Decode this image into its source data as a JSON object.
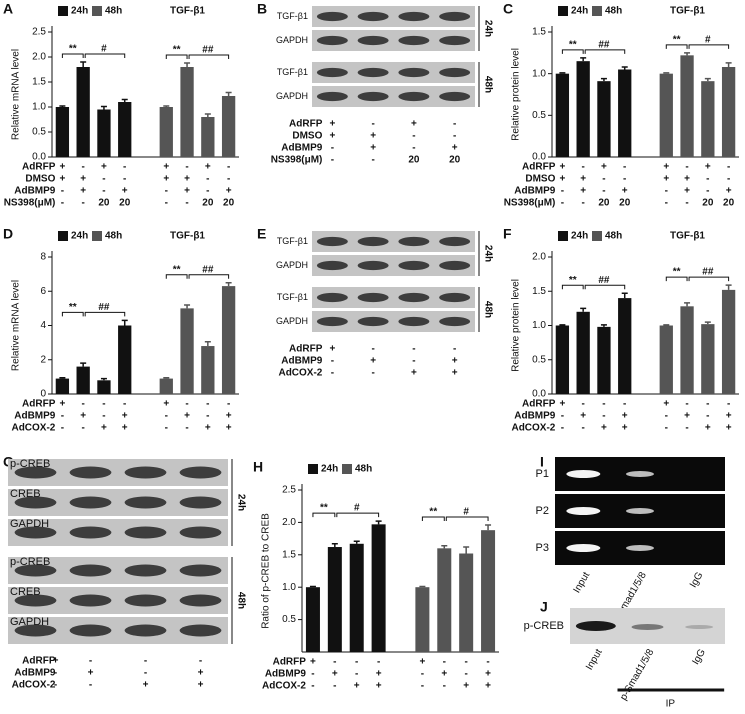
{
  "chart_data": [
    {
      "panel": "A",
      "type": "bar",
      "title": "TGF-β1",
      "ylabel": "Relative mRNA level",
      "ylim": [
        0,
        2.5
      ],
      "yticks": [
        {
          "value": 0,
          "label": "0.0"
        },
        0.5,
        {
          "value": 1,
          "label": "1.0"
        },
        1.5,
        {
          "value": 2,
          "label": "2.0"
        },
        2.5
      ],
      "series": [
        {
          "name": "24h",
          "color": "#111111",
          "values": [
            1.0,
            1.8,
            0.95,
            1.1
          ],
          "errors": [
            0.02,
            0.1,
            0.06,
            0.05
          ],
          "sig": [
            "**",
            "#"
          ]
        },
        {
          "name": "48h",
          "color": "#555555",
          "values": [
            1.0,
            1.8,
            0.8,
            1.22
          ],
          "errors": [
            0.02,
            0.08,
            0.06,
            0.07
          ],
          "sig": [
            "**",
            "##"
          ]
        }
      ],
      "conditions": [
        {
          "name": "AdRFP",
          "signs": [
            "+",
            "-",
            "+",
            "-"
          ]
        },
        {
          "name": "DMSO",
          "signs": [
            "+",
            "+",
            "-",
            "-"
          ]
        },
        {
          "name": "AdBMP9",
          "signs": [
            "-",
            "+",
            "-",
            "+"
          ]
        },
        {
          "name": "NS398(μM)",
          "signs": [
            "-",
            "-",
            "20",
            "20"
          ]
        }
      ]
    },
    {
      "panel": "C",
      "type": "bar",
      "title": "TGF-β1",
      "ylabel": "Relative protein level",
      "ylim": [
        0,
        1.5
      ],
      "yticks": [
        {
          "value": 0,
          "label": "0.0"
        },
        0.5,
        {
          "value": 1,
          "label": "1.0"
        },
        1.5
      ],
      "series": [
        {
          "name": "24h",
          "color": "#111111",
          "values": [
            1.0,
            1.15,
            0.91,
            1.05
          ],
          "errors": [
            0.01,
            0.04,
            0.03,
            0.03
          ],
          "sig": [
            "**",
            "##"
          ]
        },
        {
          "name": "48h",
          "color": "#555555",
          "values": [
            1.0,
            1.22,
            0.91,
            1.08
          ],
          "errors": [
            0.01,
            0.03,
            0.03,
            0.05
          ],
          "sig": [
            "**",
            "#"
          ]
        }
      ],
      "conditions": [
        {
          "name": "AdRFP",
          "signs": [
            "+",
            "-",
            "+",
            "-"
          ]
        },
        {
          "name": "DMSO",
          "signs": [
            "+",
            "+",
            "-",
            "-"
          ]
        },
        {
          "name": "AdBMP9",
          "signs": [
            "-",
            "+",
            "-",
            "+"
          ]
        },
        {
          "name": "NS398(μM)",
          "signs": [
            "-",
            "-",
            "20",
            "20"
          ]
        }
      ]
    },
    {
      "panel": "D",
      "type": "bar",
      "title": "TGF-β1",
      "ylabel": "Relative mRNA level",
      "ylim": [
        0,
        8
      ],
      "yticks": [
        0,
        2,
        4,
        6,
        8
      ],
      "series": [
        {
          "name": "24h",
          "color": "#111111",
          "values": [
            0.9,
            1.6,
            0.8,
            4.0
          ],
          "errors": [
            0.05,
            0.2,
            0.1,
            0.3
          ],
          "sig": [
            "**",
            "##"
          ]
        },
        {
          "name": "48h",
          "color": "#555555",
          "values": [
            0.9,
            5.0,
            2.8,
            6.3
          ],
          "errors": [
            0.05,
            0.2,
            0.25,
            0.2
          ],
          "sig": [
            "**",
            "##"
          ]
        }
      ],
      "conditions": [
        {
          "name": "AdRFP",
          "signs": [
            "+",
            "-",
            "-",
            "-"
          ]
        },
        {
          "name": "AdBMP9",
          "signs": [
            "-",
            "+",
            "-",
            "+"
          ]
        },
        {
          "name": "AdCOX-2",
          "signs": [
            "-",
            "-",
            "+",
            "+"
          ]
        }
      ]
    },
    {
      "panel": "F",
      "type": "bar",
      "title": "TGF-β1",
      "ylabel": "Relative protein level",
      "ylim": [
        0,
        2
      ],
      "yticks": [
        {
          "value": 0,
          "label": "0.0"
        },
        0.5,
        {
          "value": 1,
          "label": "1.0"
        },
        1.5,
        {
          "value": 2,
          "label": "2.0"
        }
      ],
      "series": [
        {
          "name": "24h",
          "color": "#111111",
          "values": [
            1.0,
            1.2,
            0.98,
            1.4
          ],
          "errors": [
            0.01,
            0.05,
            0.03,
            0.07
          ],
          "sig": [
            "**",
            "##"
          ]
        },
        {
          "name": "48h",
          "color": "#555555",
          "values": [
            1.0,
            1.28,
            1.02,
            1.52
          ],
          "errors": [
            0.01,
            0.05,
            0.03,
            0.07
          ],
          "sig": [
            "**",
            "##"
          ]
        }
      ],
      "conditions": [
        {
          "name": "AdRFP",
          "signs": [
            "+",
            "-",
            "-",
            "-"
          ]
        },
        {
          "name": "AdBMP9",
          "signs": [
            "-",
            "+",
            "-",
            "+"
          ]
        },
        {
          "name": "AdCOX-2",
          "signs": [
            "-",
            "-",
            "+",
            "+"
          ]
        }
      ]
    },
    {
      "panel": "H",
      "type": "bar",
      "ylabel": "Ratio of p-CREB to CREB",
      "ylim": [
        0,
        2.5
      ],
      "yticks": [
        0.5,
        {
          "value": 1,
          "label": "1.0"
        },
        1.5,
        {
          "value": 2,
          "label": "2.0"
        },
        2.5
      ],
      "series": [
        {
          "name": "24h",
          "color": "#111111",
          "values": [
            1.0,
            1.62,
            1.67,
            1.97
          ],
          "errors": [
            0.01,
            0.05,
            0.04,
            0.05
          ],
          "sig": [
            "**",
            "#"
          ]
        },
        {
          "name": "48h",
          "color": "#555555",
          "values": [
            1.0,
            1.6,
            1.52,
            1.88
          ],
          "errors": [
            0.01,
            0.04,
            0.1,
            0.08
          ],
          "sig": [
            "**",
            "#"
          ]
        }
      ],
      "conditions": [
        {
          "name": "AdRFP",
          "signs": [
            "+",
            "-",
            "-",
            "-"
          ]
        },
        {
          "name": "AdBMP9",
          "signs": [
            "-",
            "+",
            "-",
            "+"
          ]
        },
        {
          "name": "AdCOX-2",
          "signs": [
            "-",
            "-",
            "+",
            "+"
          ]
        }
      ]
    }
  ],
  "blots": [
    {
      "panel": "B",
      "bands": [
        "TGF-β1",
        "GAPDH"
      ],
      "times": [
        "24h",
        "48h"
      ],
      "conditions": [
        {
          "name": "AdRFP",
          "signs": [
            "+",
            "-",
            "+",
            "-"
          ]
        },
        {
          "name": "DMSO",
          "signs": [
            "+",
            "+",
            "-",
            "-"
          ]
        },
        {
          "name": "AdBMP9",
          "signs": [
            "-",
            "+",
            "-",
            "+"
          ]
        },
        {
          "name": "NS398(μM)",
          "signs": [
            "-",
            "-",
            "20",
            "20"
          ]
        }
      ]
    },
    {
      "panel": "E",
      "bands": [
        "TGF-β1",
        "GAPDH"
      ],
      "times": [
        "24h",
        "48h"
      ],
      "conditions": [
        {
          "name": "AdRFP",
          "signs": [
            "+",
            "-",
            "-",
            "-"
          ]
        },
        {
          "name": "AdBMP9",
          "signs": [
            "-",
            "+",
            "-",
            "+"
          ]
        },
        {
          "name": "AdCOX-2",
          "signs": [
            "-",
            "-",
            "+",
            "+"
          ]
        }
      ]
    },
    {
      "panel": "G",
      "bands": [
        "p-CREB",
        "CREB",
        "GAPDH"
      ],
      "times": [
        "24h",
        "48h"
      ],
      "conditions": [
        {
          "name": "AdRFP",
          "signs": [
            "+",
            "-",
            "-",
            "-"
          ]
        },
        {
          "name": "AdBMP9",
          "signs": [
            "-",
            "+",
            "-",
            "+"
          ]
        },
        {
          "name": "AdCOX-2",
          "signs": [
            "-",
            "-",
            "+",
            "+"
          ]
        }
      ]
    }
  ],
  "pcr": {
    "panel": "I",
    "rows": [
      "P1",
      "P2",
      "P3"
    ],
    "lanes": [
      "Input",
      "p-Smad1/5/8",
      "IgG"
    ]
  },
  "ip": {
    "panel": "J",
    "rows": [
      "p-CREB"
    ],
    "lanes": [
      "Input",
      "p-Smad1/5/8",
      "IgG"
    ],
    "group": "IP"
  }
}
